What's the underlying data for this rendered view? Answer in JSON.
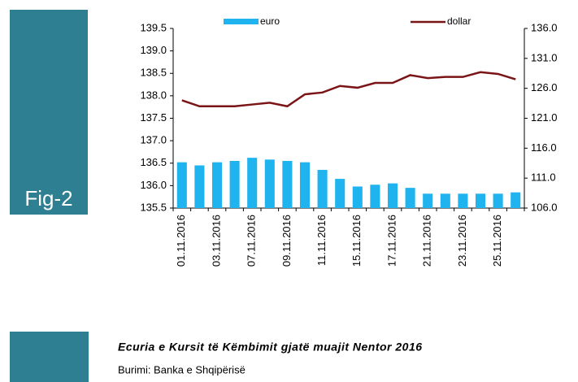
{
  "side_label": "Fig-2",
  "caption": "Ecuria e Kursit të Këmbimit gjatë muajit Nentor 2016",
  "source": "Burimi: Banka e Shqipërisë",
  "chart_data": {
    "type": "bar_line",
    "categories": [
      "01.11.2016",
      null,
      "03.11.2016",
      null,
      "07.11.2016",
      null,
      "09.11.2016",
      null,
      "11.11.2016",
      null,
      "15.11.2016",
      null,
      "17.11.2016",
      null,
      "21.11.2016",
      null,
      "23.11.2016",
      null,
      "25.11.2016",
      null
    ],
    "series": [
      {
        "name": "euro",
        "color": "#1fb4ef",
        "type": "bar",
        "axis": "y",
        "values": [
          136.52,
          136.45,
          136.52,
          136.55,
          136.62,
          136.58,
          136.55,
          136.52,
          136.35,
          136.15,
          135.98,
          136.02,
          136.05,
          135.95,
          135.82,
          135.82,
          135.82,
          135.82,
          135.82,
          135.85
        ]
      },
      {
        "name": "dollar",
        "color": "#7b1416",
        "type": "line",
        "axis": "y2",
        "values": [
          124.0,
          123.0,
          123.0,
          123.0,
          123.3,
          123.6,
          123.0,
          125.0,
          125.3,
          126.4,
          126.1,
          126.9,
          126.9,
          128.2,
          127.7,
          127.9,
          127.9,
          128.7,
          128.4,
          127.5
        ]
      }
    ],
    "ylim": [
      135.5,
      139.5
    ],
    "yticks": [
      {
        "value": 135.5,
        "label": "135.5"
      },
      {
        "value": 136,
        "label": "136.0"
      },
      {
        "value": 136.5,
        "label": "136.5"
      },
      {
        "value": 137,
        "label": "137.0"
      },
      {
        "value": 137.5,
        "label": "137.5"
      },
      {
        "value": 138,
        "label": "138.0"
      },
      {
        "value": 138.5,
        "label": "138.5"
      },
      {
        "value": 139,
        "label": "139.0"
      },
      {
        "value": 139.5,
        "label": "139.5"
      }
    ],
    "y2lim": [
      106,
      136
    ],
    "y2ticks": [
      {
        "value": 106,
        "label": "106.0"
      },
      {
        "value": 111,
        "label": "111.0"
      },
      {
        "value": 116,
        "label": "116.0"
      },
      {
        "value": 121,
        "label": "121.0"
      },
      {
        "value": 126,
        "label": "126.0"
      },
      {
        "value": 131,
        "label": "131.0"
      },
      {
        "value": 136,
        "label": "136.0"
      }
    ],
    "legend": "top"
  }
}
